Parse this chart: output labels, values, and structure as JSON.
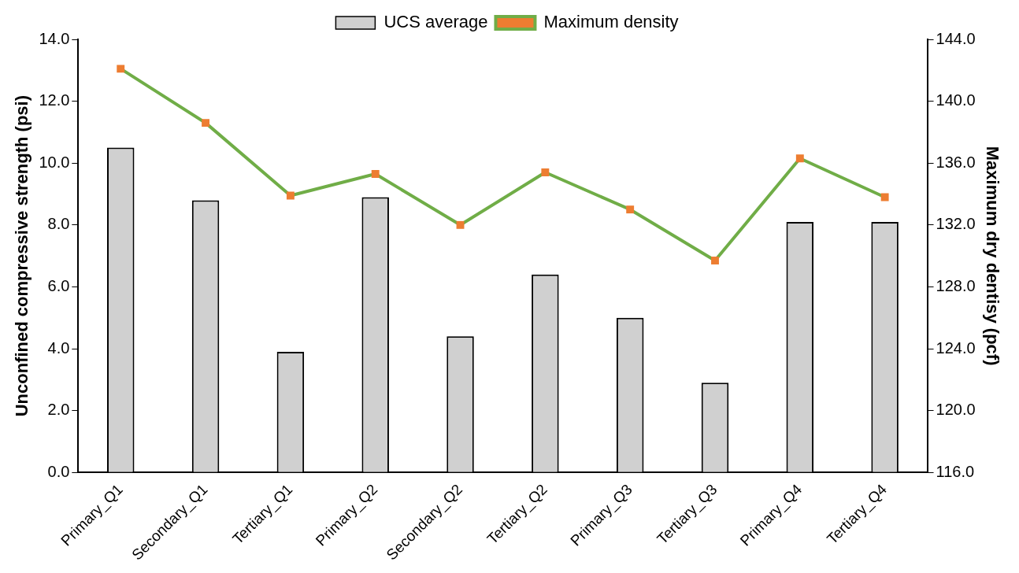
{
  "chart_data": {
    "type": "bar",
    "ylabel": "Unconfined compressive strength (psi)",
    "y2label": "Maximum dry dentisy (pcf)",
    "categories": [
      "Primary_Q1",
      "Secondary_Q1",
      "Tertiary_Q1",
      "Primary_Q2",
      "Secondary_Q2",
      "Tertiary_Q2",
      "Primary_Q3",
      "Tertiary_Q3",
      "Primary_Q4",
      "Tertiary_Q4"
    ],
    "series": [
      {
        "name": "UCS average",
        "color": "#d0d0d0",
        "values": [
          10.5,
          8.8,
          3.9,
          8.9,
          4.4,
          6.4,
          5.0,
          2.9,
          8.1,
          8.1
        ]
      },
      {
        "name": "Maximum density",
        "type": "line",
        "axis": "y2",
        "color": "#70ad47",
        "values": [
          142.1,
          138.6,
          133.9,
          135.3,
          132.0,
          135.4,
          133.0,
          129.7,
          136.3,
          133.8
        ]
      }
    ],
    "marker": "square",
    "ylim": [
      0,
      14
    ],
    "yticks": [
      {
        "value": 0,
        "label": "0.0"
      },
      {
        "value": 2,
        "label": "2.0"
      },
      {
        "value": 4,
        "label": "4.0"
      },
      {
        "value": 6,
        "label": "6.0"
      },
      {
        "value": 8,
        "label": "8.0"
      },
      {
        "value": 10,
        "label": "10.0"
      },
      {
        "value": 12,
        "label": "12.0"
      },
      {
        "value": 14,
        "label": "14.0"
      }
    ],
    "y2lim": [
      116,
      144
    ],
    "y2ticks": [
      {
        "value": 116,
        "label": "116.0"
      },
      {
        "value": 120,
        "label": "120.0"
      },
      {
        "value": 124,
        "label": "124.0"
      },
      {
        "value": 128,
        "label": "128.0"
      },
      {
        "value": 132,
        "label": "132.0"
      },
      {
        "value": 136,
        "label": "136.0"
      },
      {
        "value": 140,
        "label": "140.0"
      },
      {
        "value": 144,
        "label": "144.0"
      }
    ],
    "legend": "top"
  }
}
